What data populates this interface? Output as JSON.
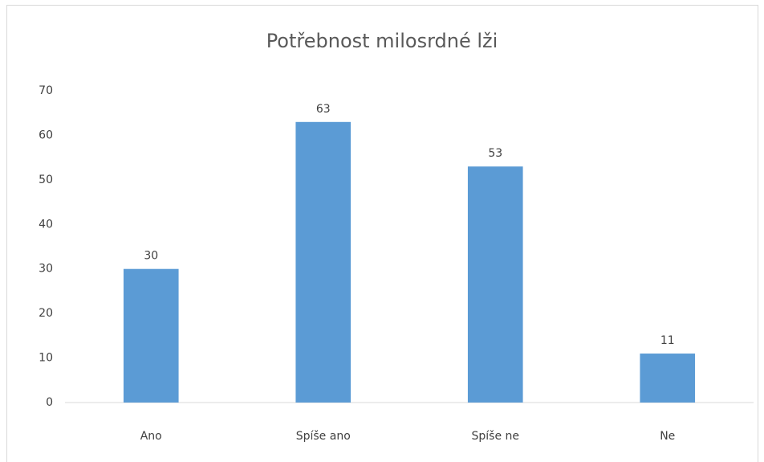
{
  "chart_data": {
    "type": "bar",
    "title": "Potřebnost milosrdné lži",
    "categories": [
      "Ano",
      "Spíše ano",
      "Spíše ne",
      "Ne"
    ],
    "values": [
      30,
      63,
      53,
      11
    ],
    "color": "#5b9bd5",
    "ylim": [
      0,
      70
    ],
    "yticks": [
      0,
      10,
      20,
      30,
      40,
      50,
      60,
      70
    ],
    "grid": false
  }
}
